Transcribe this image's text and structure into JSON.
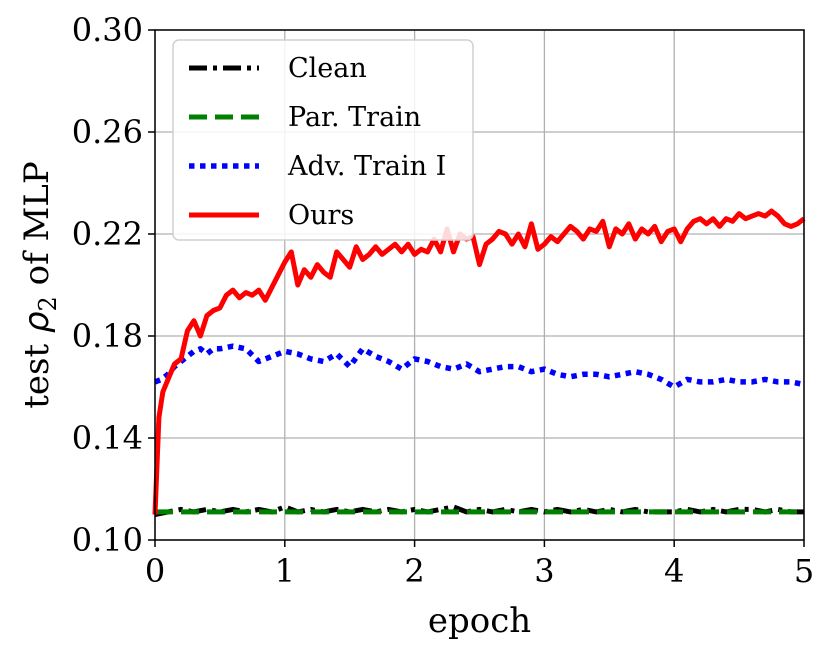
{
  "chart_data": {
    "type": "line",
    "xlabel": "epoch",
    "ylabel": {
      "prefix": "test ",
      "symbol": "ρ",
      "subscript": "2",
      "suffix": " of  MLP"
    },
    "xlim": [
      0,
      5
    ],
    "ylim": [
      0.1,
      0.3
    ],
    "xticks": [
      0,
      1,
      2,
      3,
      4,
      5
    ],
    "xtick_labels": [
      "0",
      "1",
      "2",
      "3",
      "4",
      "5"
    ],
    "yticks": [
      0.1,
      0.14,
      0.18,
      0.22,
      0.26,
      0.3
    ],
    "ytick_labels": [
      "0.10",
      "0.14",
      "0.18",
      "0.22",
      "0.26",
      "0.30"
    ],
    "grid": true,
    "legend_position": "top-left",
    "series": [
      {
        "name": "Clean",
        "color": "#000000",
        "style": "dashdot",
        "x": [
          0.0,
          0.1,
          0.2,
          0.3,
          0.4,
          0.5,
          0.6,
          0.7,
          0.8,
          0.9,
          1.0,
          1.1,
          1.2,
          1.3,
          1.4,
          1.5,
          1.6,
          1.7,
          1.8,
          1.9,
          2.0,
          2.1,
          2.2,
          2.3,
          2.4,
          2.5,
          2.6,
          2.7,
          2.8,
          2.9,
          3.0,
          3.1,
          3.2,
          3.3,
          3.4,
          3.5,
          3.6,
          3.7,
          3.8,
          3.9,
          4.0,
          4.1,
          4.2,
          4.3,
          4.4,
          4.5,
          4.6,
          4.7,
          4.8,
          4.9,
          5.0
        ],
        "y": [
          0.11,
          0.111,
          0.112,
          0.111,
          0.112,
          0.111,
          0.112,
          0.111,
          0.112,
          0.111,
          0.113,
          0.111,
          0.112,
          0.111,
          0.112,
          0.111,
          0.112,
          0.111,
          0.112,
          0.111,
          0.112,
          0.111,
          0.112,
          0.113,
          0.111,
          0.112,
          0.111,
          0.112,
          0.111,
          0.112,
          0.111,
          0.112,
          0.111,
          0.112,
          0.111,
          0.112,
          0.111,
          0.112,
          0.111,
          0.111,
          0.111,
          0.112,
          0.111,
          0.112,
          0.111,
          0.112,
          0.112,
          0.111,
          0.112,
          0.111,
          0.111
        ]
      },
      {
        "name": "Par. Train",
        "color": "#008000",
        "style": "dashed",
        "x": [
          0.0,
          0.25,
          0.5,
          0.75,
          1.0,
          1.25,
          1.5,
          1.75,
          2.0,
          2.25,
          2.5,
          2.75,
          3.0,
          3.25,
          3.5,
          3.75,
          4.0,
          4.25,
          4.5,
          4.75,
          5.0
        ],
        "y": [
          0.111,
          0.111,
          0.111,
          0.111,
          0.111,
          0.111,
          0.111,
          0.111,
          0.111,
          0.111,
          0.111,
          0.111,
          0.111,
          0.111,
          0.111,
          0.111,
          0.111,
          0.111,
          0.111,
          0.111,
          0.111
        ]
      },
      {
        "name": "Adv. Train I",
        "color": "#0000ff",
        "style": "dotted",
        "x": [
          0.0,
          0.05,
          0.1,
          0.15,
          0.2,
          0.25,
          0.3,
          0.35,
          0.4,
          0.45,
          0.5,
          0.6,
          0.7,
          0.8,
          0.9,
          1.0,
          1.1,
          1.2,
          1.3,
          1.4,
          1.5,
          1.6,
          1.7,
          1.8,
          1.9,
          2.0,
          2.1,
          2.2,
          2.3,
          2.4,
          2.5,
          2.6,
          2.7,
          2.8,
          2.9,
          3.0,
          3.1,
          3.2,
          3.3,
          3.4,
          3.5,
          3.6,
          3.7,
          3.8,
          3.9,
          4.0,
          4.1,
          4.2,
          4.3,
          4.4,
          4.5,
          4.6,
          4.7,
          4.8,
          4.9,
          5.0
        ],
        "y": [
          0.162,
          0.163,
          0.165,
          0.168,
          0.17,
          0.172,
          0.174,
          0.175,
          0.173,
          0.175,
          0.175,
          0.176,
          0.175,
          0.17,
          0.172,
          0.174,
          0.173,
          0.171,
          0.17,
          0.173,
          0.168,
          0.175,
          0.172,
          0.17,
          0.167,
          0.171,
          0.17,
          0.168,
          0.167,
          0.169,
          0.166,
          0.167,
          0.168,
          0.168,
          0.166,
          0.167,
          0.165,
          0.164,
          0.165,
          0.165,
          0.164,
          0.165,
          0.166,
          0.165,
          0.163,
          0.16,
          0.163,
          0.162,
          0.162,
          0.163,
          0.162,
          0.162,
          0.163,
          0.162,
          0.162,
          0.161
        ]
      },
      {
        "name": "Ours",
        "color": "#ff0000",
        "style": "solid",
        "x": [
          0.0,
          0.03,
          0.06,
          0.1,
          0.15,
          0.2,
          0.25,
          0.3,
          0.35,
          0.4,
          0.45,
          0.5,
          0.55,
          0.6,
          0.65,
          0.7,
          0.75,
          0.8,
          0.85,
          0.9,
          0.95,
          1.0,
          1.05,
          1.1,
          1.15,
          1.2,
          1.25,
          1.3,
          1.35,
          1.4,
          1.45,
          1.5,
          1.55,
          1.6,
          1.65,
          1.7,
          1.75,
          1.8,
          1.85,
          1.9,
          1.95,
          2.0,
          2.05,
          2.1,
          2.15,
          2.2,
          2.25,
          2.3,
          2.35,
          2.4,
          2.45,
          2.5,
          2.55,
          2.6,
          2.65,
          2.7,
          2.75,
          2.8,
          2.85,
          2.9,
          2.95,
          3.0,
          3.05,
          3.1,
          3.15,
          3.2,
          3.25,
          3.3,
          3.35,
          3.4,
          3.45,
          3.5,
          3.55,
          3.6,
          3.65,
          3.7,
          3.75,
          3.8,
          3.85,
          3.9,
          3.95,
          4.0,
          4.05,
          4.1,
          4.15,
          4.2,
          4.25,
          4.3,
          4.35,
          4.4,
          4.45,
          4.5,
          4.55,
          4.6,
          4.65,
          4.7,
          4.75,
          4.8,
          4.85,
          4.9,
          4.95,
          5.0
        ],
        "y": [
          0.11,
          0.148,
          0.158,
          0.163,
          0.169,
          0.171,
          0.182,
          0.186,
          0.18,
          0.188,
          0.19,
          0.191,
          0.196,
          0.198,
          0.195,
          0.197,
          0.196,
          0.198,
          0.194,
          0.199,
          0.204,
          0.209,
          0.213,
          0.2,
          0.206,
          0.203,
          0.208,
          0.205,
          0.203,
          0.213,
          0.21,
          0.207,
          0.215,
          0.21,
          0.212,
          0.215,
          0.212,
          0.214,
          0.216,
          0.213,
          0.216,
          0.212,
          0.214,
          0.213,
          0.218,
          0.213,
          0.222,
          0.213,
          0.22,
          0.218,
          0.219,
          0.208,
          0.216,
          0.218,
          0.221,
          0.22,
          0.216,
          0.22,
          0.215,
          0.224,
          0.214,
          0.216,
          0.219,
          0.217,
          0.22,
          0.223,
          0.221,
          0.218,
          0.222,
          0.221,
          0.225,
          0.215,
          0.222,
          0.22,
          0.224,
          0.218,
          0.222,
          0.22,
          0.223,
          0.217,
          0.221,
          0.222,
          0.217,
          0.222,
          0.225,
          0.226,
          0.224,
          0.226,
          0.223,
          0.226,
          0.225,
          0.228,
          0.226,
          0.227,
          0.228,
          0.227,
          0.229,
          0.227,
          0.224,
          0.223,
          0.224,
          0.226
        ]
      }
    ]
  }
}
